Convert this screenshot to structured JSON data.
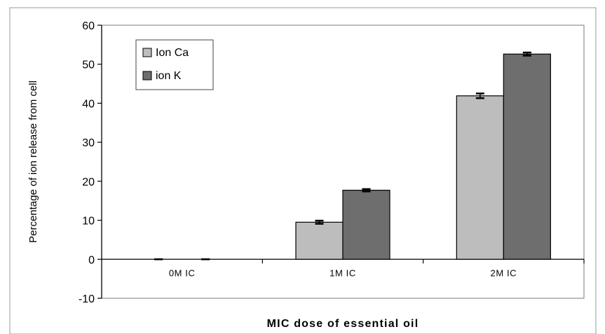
{
  "chart_data": {
    "type": "bar",
    "title": "",
    "xlabel": "MIC dose of essential oil",
    "ylabel": "Percentage of ion release from cell",
    "categories": [
      "0M IC",
      "1M IC",
      "2M IC"
    ],
    "series": [
      {
        "name": "Ion Ca",
        "values": [
          0,
          9.5,
          41.9
        ],
        "errors": [
          0,
          0.4,
          0.6
        ],
        "color": "#bdbdbd"
      },
      {
        "name": "ion K",
        "values": [
          0,
          17.7,
          52.6
        ],
        "errors": [
          0,
          0.3,
          0.4
        ],
        "color": "#6e6e6e"
      }
    ],
    "ylim": [
      -10,
      60
    ],
    "yticks": [
      -10,
      0,
      10,
      20,
      30,
      40,
      50,
      60
    ],
    "grid": false,
    "legend": "top-left"
  }
}
